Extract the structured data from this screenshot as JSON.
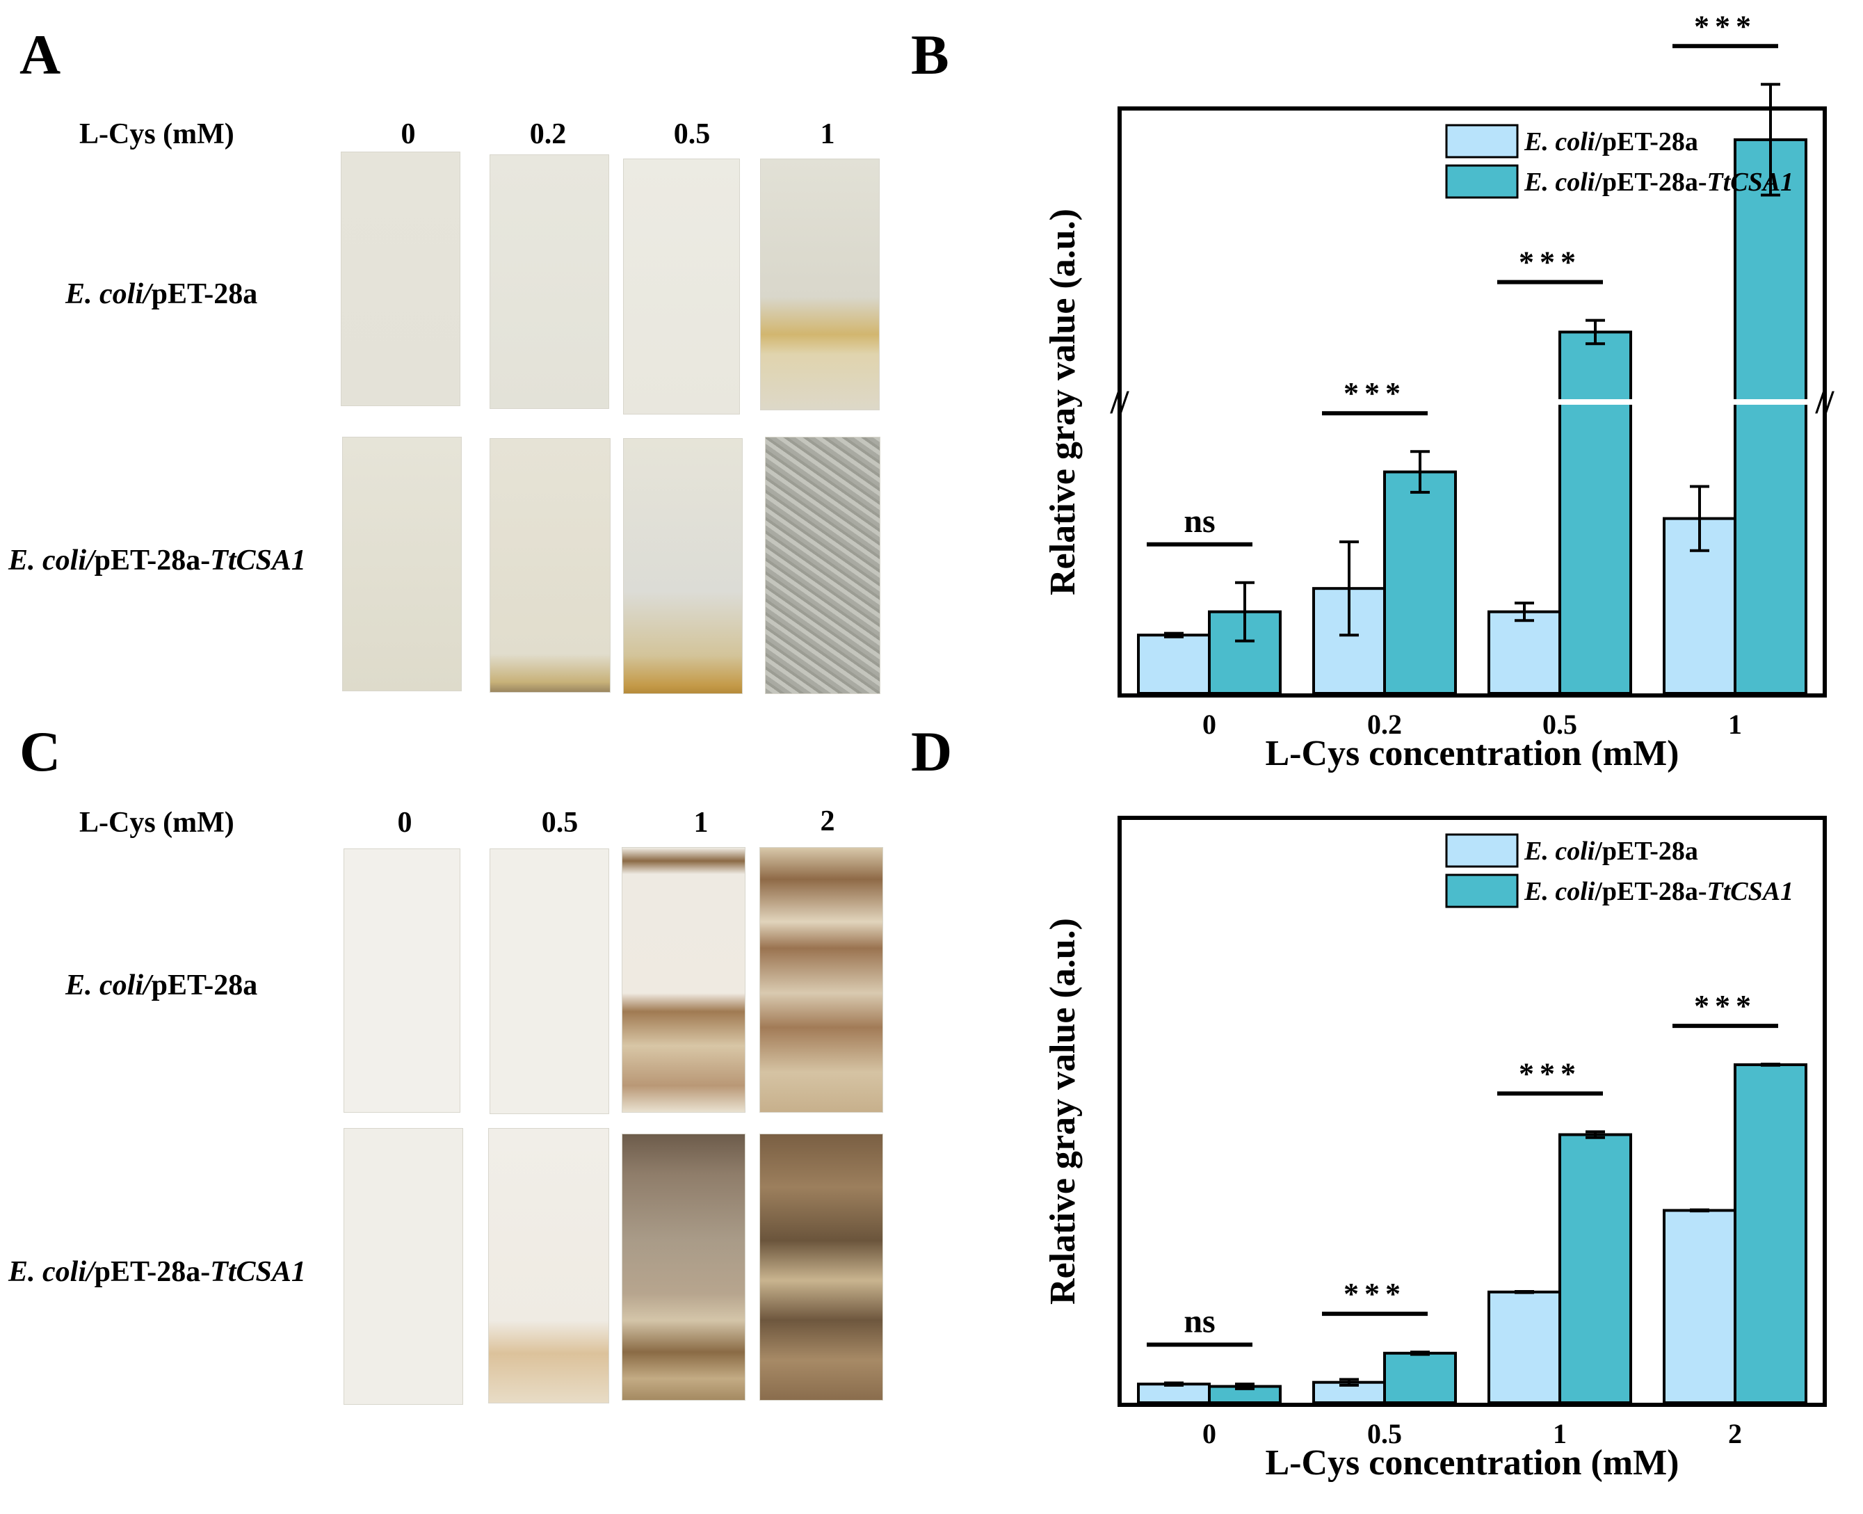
{
  "panels": {
    "A": {
      "letter": "A",
      "row_header": "L-Cys (mM)",
      "concentrations": [
        "0",
        "0.2",
        "0.5",
        "1"
      ],
      "rows": [
        {
          "prefix": "E. coli/",
          "suffix": "pET-28a",
          "gene": ""
        },
        {
          "prefix": "E. coli/",
          "suffix": "pET-28a-",
          "gene": "TtCSA1"
        }
      ]
    },
    "C": {
      "letter": "C",
      "row_header": "L-Cys (mM)",
      "concentrations": [
        "0",
        "0.5",
        "1",
        "2"
      ],
      "rows": [
        {
          "prefix": "E. coli/",
          "suffix": "pET-28a",
          "gene": ""
        },
        {
          "prefix": "E. coli/",
          "suffix": "pET-28a-",
          "gene": "TtCSA1"
        }
      ]
    },
    "B": {
      "letter": "B"
    },
    "D": {
      "letter": "D"
    }
  },
  "colors": {
    "control": "#b8e3fb",
    "tcsa1": "#4bbccc",
    "axis": "#000000",
    "strip_blank": "#e9e7dc",
    "strip_stain_light": "#cdb27a",
    "strip_stain_dark": "#7d6646"
  },
  "chart_data": [
    {
      "type": "bar",
      "panel": "B",
      "categories": [
        "0",
        "0.2",
        "0.5",
        "1"
      ],
      "xlabel": "L-Cys concentration (mM)",
      "ylabel": "Relative gray value (a.u.)",
      "ylim": [
        0,
        10
      ],
      "axis_break": {
        "at": 5.0,
        "label": "//"
      },
      "series": [
        {
          "name_italic": "E. coli",
          "name_rest": "/pET-28a",
          "gene": "",
          "values": [
            1.0,
            1.8,
            1.4,
            3.0
          ],
          "errors": [
            0.03,
            0.8,
            0.15,
            0.55
          ]
        },
        {
          "name_italic": "E. coli",
          "name_rest": "/pET-28a-",
          "gene": "TtCSA1",
          "values": [
            1.4,
            3.8,
            6.2,
            9.5
          ],
          "errors": [
            0.5,
            0.35,
            0.2,
            0.95
          ]
        }
      ],
      "significance": [
        "ns",
        "***",
        "***",
        "***"
      ],
      "legend": "top-right",
      "grid": false
    },
    {
      "type": "bar",
      "panel": "D",
      "categories": [
        "0",
        "0.5",
        "1",
        "2"
      ],
      "xlabel": "L-Cys concentration (mM)",
      "ylabel": "Relative gray value (a.u.)",
      "ylim": [
        0,
        10
      ],
      "series": [
        {
          "name_italic": "E. coli",
          "name_rest": "/pET-28a",
          "gene": "",
          "values": [
            0.32,
            0.35,
            1.9,
            3.3
          ],
          "errors": [
            0.02,
            0.05,
            0.01,
            0.01
          ]
        },
        {
          "name_italic": "E. coli",
          "name_rest": "/pET-28a-",
          "gene": "TtCSA1",
          "values": [
            0.28,
            0.85,
            4.6,
            5.8
          ],
          "errors": [
            0.04,
            0.02,
            0.05,
            0.01
          ]
        }
      ],
      "significance": [
        "ns",
        "***",
        "***",
        "***"
      ],
      "legend": "top-right",
      "grid": false
    }
  ]
}
